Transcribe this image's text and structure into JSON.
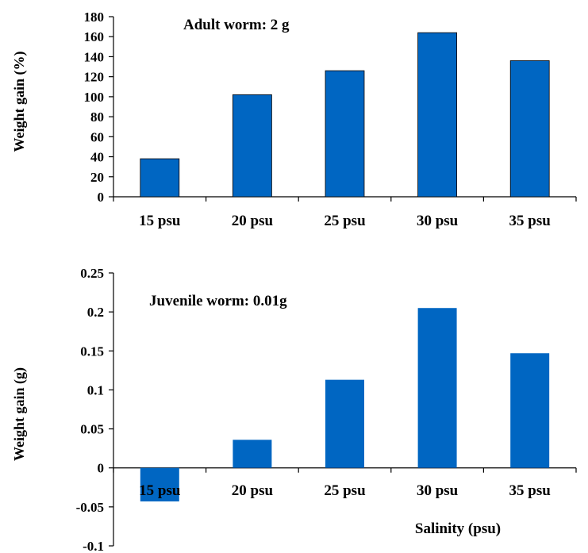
{
  "bar_color": "#0066c2",
  "chart_data": [
    {
      "type": "bar",
      "categories": [
        "15 psu",
        "20 psu",
        "25 psu",
        "30 psu",
        "35 psu"
      ],
      "values": [
        38,
        102,
        126,
        164,
        136
      ],
      "ylim": [
        0,
        180
      ],
      "yticks": [
        "0",
        "20",
        "40",
        "60",
        "80",
        "100",
        "120",
        "140",
        "160",
        "180"
      ],
      "ylabel": "Weight gain (%)",
      "annotation": "Adult worm: 2 g",
      "grid": false
    },
    {
      "type": "bar",
      "categories": [
        "15 psu",
        "20 psu",
        "25 psu",
        "30 psu",
        "35 psu"
      ],
      "values": [
        -0.043,
        0.036,
        0.113,
        0.205,
        0.147
      ],
      "ylim": [
        -0.1,
        0.25
      ],
      "yticks": [
        "-0.1",
        "-0.05",
        "0",
        "0.05",
        "0.1",
        "0.15",
        "0.2",
        "0.25"
      ],
      "ylabel": "Weight gain (g)",
      "annotation": "Juvenile worm: 0.01g",
      "xlabel": "Salinity (psu)",
      "grid": false
    }
  ]
}
